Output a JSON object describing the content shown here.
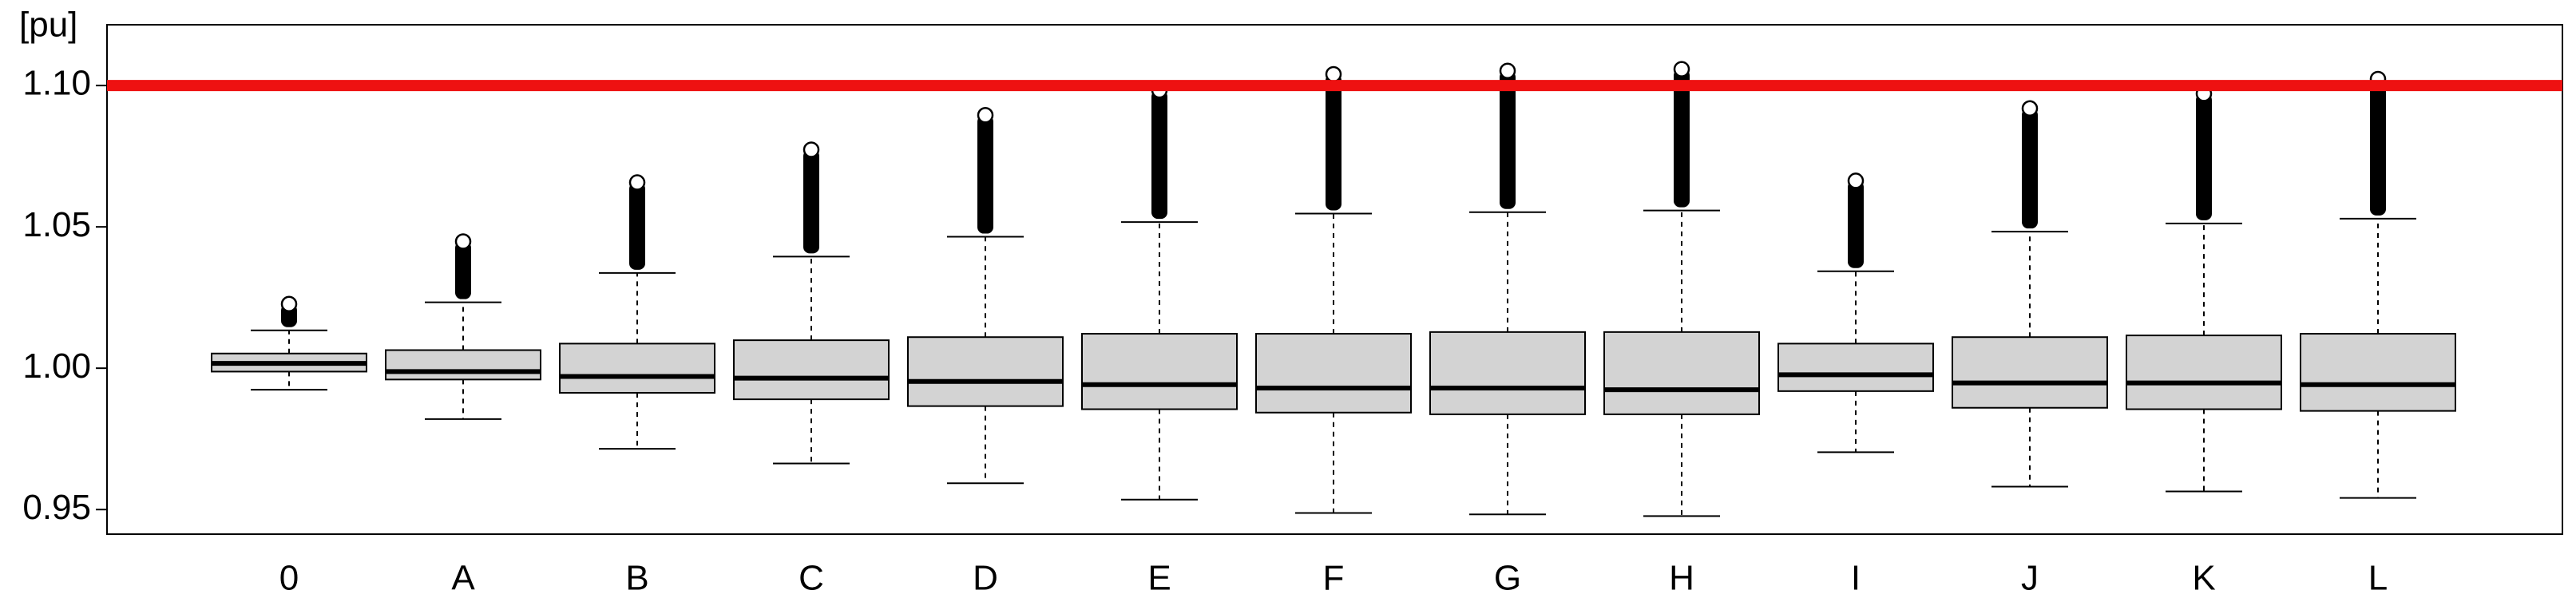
{
  "chart_data": {
    "type": "box",
    "ylabel": "[pu]",
    "categories": [
      "0",
      "A",
      "B",
      "C",
      "D",
      "E",
      "F",
      "G",
      "H",
      "I",
      "J",
      "K",
      "L"
    ],
    "whisker_low": [
      0.9924,
      0.982,
      0.9715,
      0.9663,
      0.9593,
      0.9535,
      0.9488,
      0.9483,
      0.9477,
      0.9703,
      0.9581,
      0.9564,
      0.9541
    ],
    "q1": [
      0.9988,
      0.996,
      0.9913,
      0.989,
      0.9866,
      0.9855,
      0.9843,
      0.9837,
      0.9837,
      0.9919,
      0.986,
      0.9855,
      0.9849
    ],
    "median": [
      1.0017,
      0.9988,
      0.9971,
      0.9965,
      0.9953,
      0.9942,
      0.993,
      0.993,
      0.9924,
      0.9977,
      0.9948,
      0.9948,
      0.9942
    ],
    "q3": [
      1.0052,
      1.0064,
      1.0087,
      1.0099,
      1.011,
      1.0122,
      1.0122,
      1.0128,
      1.0128,
      1.0087,
      1.011,
      1.0116,
      1.0122
    ],
    "whisker_high": [
      1.0134,
      1.0233,
      1.0337,
      1.0395,
      1.0465,
      1.0517,
      1.0547,
      1.0552,
      1.0558,
      1.0343,
      1.0483,
      1.0512,
      1.0529
    ],
    "outlier_max": [
      1.0227,
      1.0448,
      1.0657,
      1.0773,
      1.0895,
      1.0983,
      1.104,
      1.1052,
      1.1058,
      1.0663,
      1.0919,
      1.0971,
      1.1023
    ],
    "box_color": "#d3d3d3",
    "reference_line": {
      "value": 1.1,
      "color": "#ee1111"
    },
    "ylim": [
      0.9413,
      1.1215
    ],
    "yticks": [
      {
        "value": 0.95,
        "label": "0.95"
      },
      {
        "value": 1.0,
        "label": "1.00"
      },
      1.05,
      {
        "value": 1.1,
        "label": "1.10"
      }
    ]
  }
}
